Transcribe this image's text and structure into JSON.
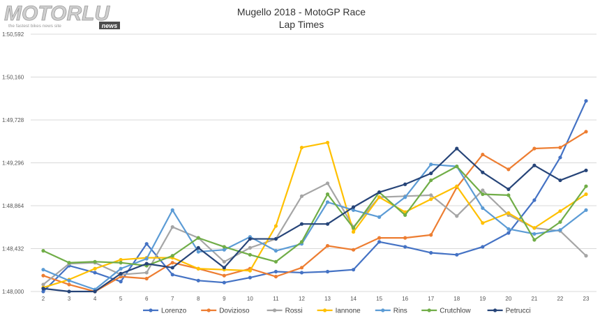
{
  "logo": {
    "word": "MOTORLU",
    "tagline": "the fastest bikes news site",
    "badge": "news"
  },
  "chart_data": {
    "type": "line",
    "title": "Mugello 2018 - MotoGP Race",
    "subtitle": "Lap Times",
    "x": [
      2,
      3,
      4,
      5,
      6,
      7,
      8,
      9,
      10,
      11,
      12,
      13,
      14,
      15,
      16,
      17,
      18,
      19,
      20,
      21,
      22,
      23
    ],
    "ylim": [
      108.0,
      110.592
    ],
    "y_ticks": [
      108.0,
      108.432,
      108.864,
      109.296,
      109.728,
      110.16,
      110.592
    ],
    "y_tick_labels": [
      "1:48,000",
      "1:48,432",
      "1:48,864",
      "1:49,296",
      "1:49,728",
      "1:50,160",
      "1:50,592"
    ],
    "grid": true,
    "legend": "bottom",
    "series": [
      {
        "name": "Lorenzo",
        "color": "#4472C4",
        "values": [
          108.0,
          108.26,
          108.19,
          108.1,
          108.48,
          108.17,
          108.11,
          108.09,
          108.14,
          108.2,
          108.19,
          108.2,
          108.22,
          108.5,
          108.45,
          108.39,
          108.37,
          108.45,
          108.59,
          108.92,
          109.35,
          109.92
        ]
      },
      {
        "name": "Dovizioso",
        "color": "#ED7D31",
        "values": [
          108.16,
          108.07,
          108.0,
          108.15,
          108.13,
          108.29,
          108.23,
          108.16,
          108.23,
          108.15,
          108.24,
          108.46,
          108.42,
          108.54,
          108.54,
          108.57,
          109.05,
          109.38,
          109.23,
          109.44,
          109.45,
          109.61
        ]
      },
      {
        "name": "Rossi",
        "color": "#A5A5A5",
        "values": [
          108.07,
          108.28,
          108.29,
          108.17,
          108.19,
          108.65,
          108.54,
          108.3,
          108.44,
          108.53,
          108.96,
          109.09,
          108.65,
          108.95,
          108.96,
          108.97,
          108.76,
          109.02,
          108.77,
          108.64,
          108.61,
          108.36
        ]
      },
      {
        "name": "Iannone",
        "color": "#FFC000",
        "values": [
          108.04,
          108.12,
          108.23,
          108.32,
          108.34,
          108.34,
          108.23,
          108.22,
          108.21,
          108.66,
          109.45,
          109.5,
          108.6,
          108.95,
          108.8,
          108.93,
          109.06,
          108.69,
          108.79,
          108.64,
          108.81,
          108.98
        ]
      },
      {
        "name": "Rins",
        "color": "#5B9BD5",
        "values": [
          108.22,
          108.11,
          108.02,
          108.23,
          108.33,
          108.82,
          108.4,
          108.42,
          108.55,
          108.41,
          108.48,
          108.9,
          108.82,
          108.75,
          108.95,
          109.28,
          109.26,
          108.84,
          108.63,
          108.58,
          108.62,
          108.82
        ]
      },
      {
        "name": "Crutchlow",
        "color": "#70AD47",
        "values": [
          108.41,
          108.29,
          108.3,
          108.29,
          108.26,
          108.36,
          108.54,
          108.45,
          108.37,
          108.3,
          108.5,
          108.98,
          108.64,
          109.0,
          108.77,
          109.12,
          109.26,
          108.98,
          108.97,
          108.52,
          108.7,
          109.06
        ]
      },
      {
        "name": "Petrucci",
        "color": "#264478",
        "values": [
          108.03,
          108.0,
          108.0,
          108.18,
          108.28,
          108.24,
          108.44,
          108.24,
          108.53,
          108.53,
          108.68,
          108.68,
          108.85,
          109.0,
          109.08,
          109.19,
          109.44,
          109.2,
          109.03,
          109.27,
          109.12,
          109.22
        ]
      }
    ]
  }
}
